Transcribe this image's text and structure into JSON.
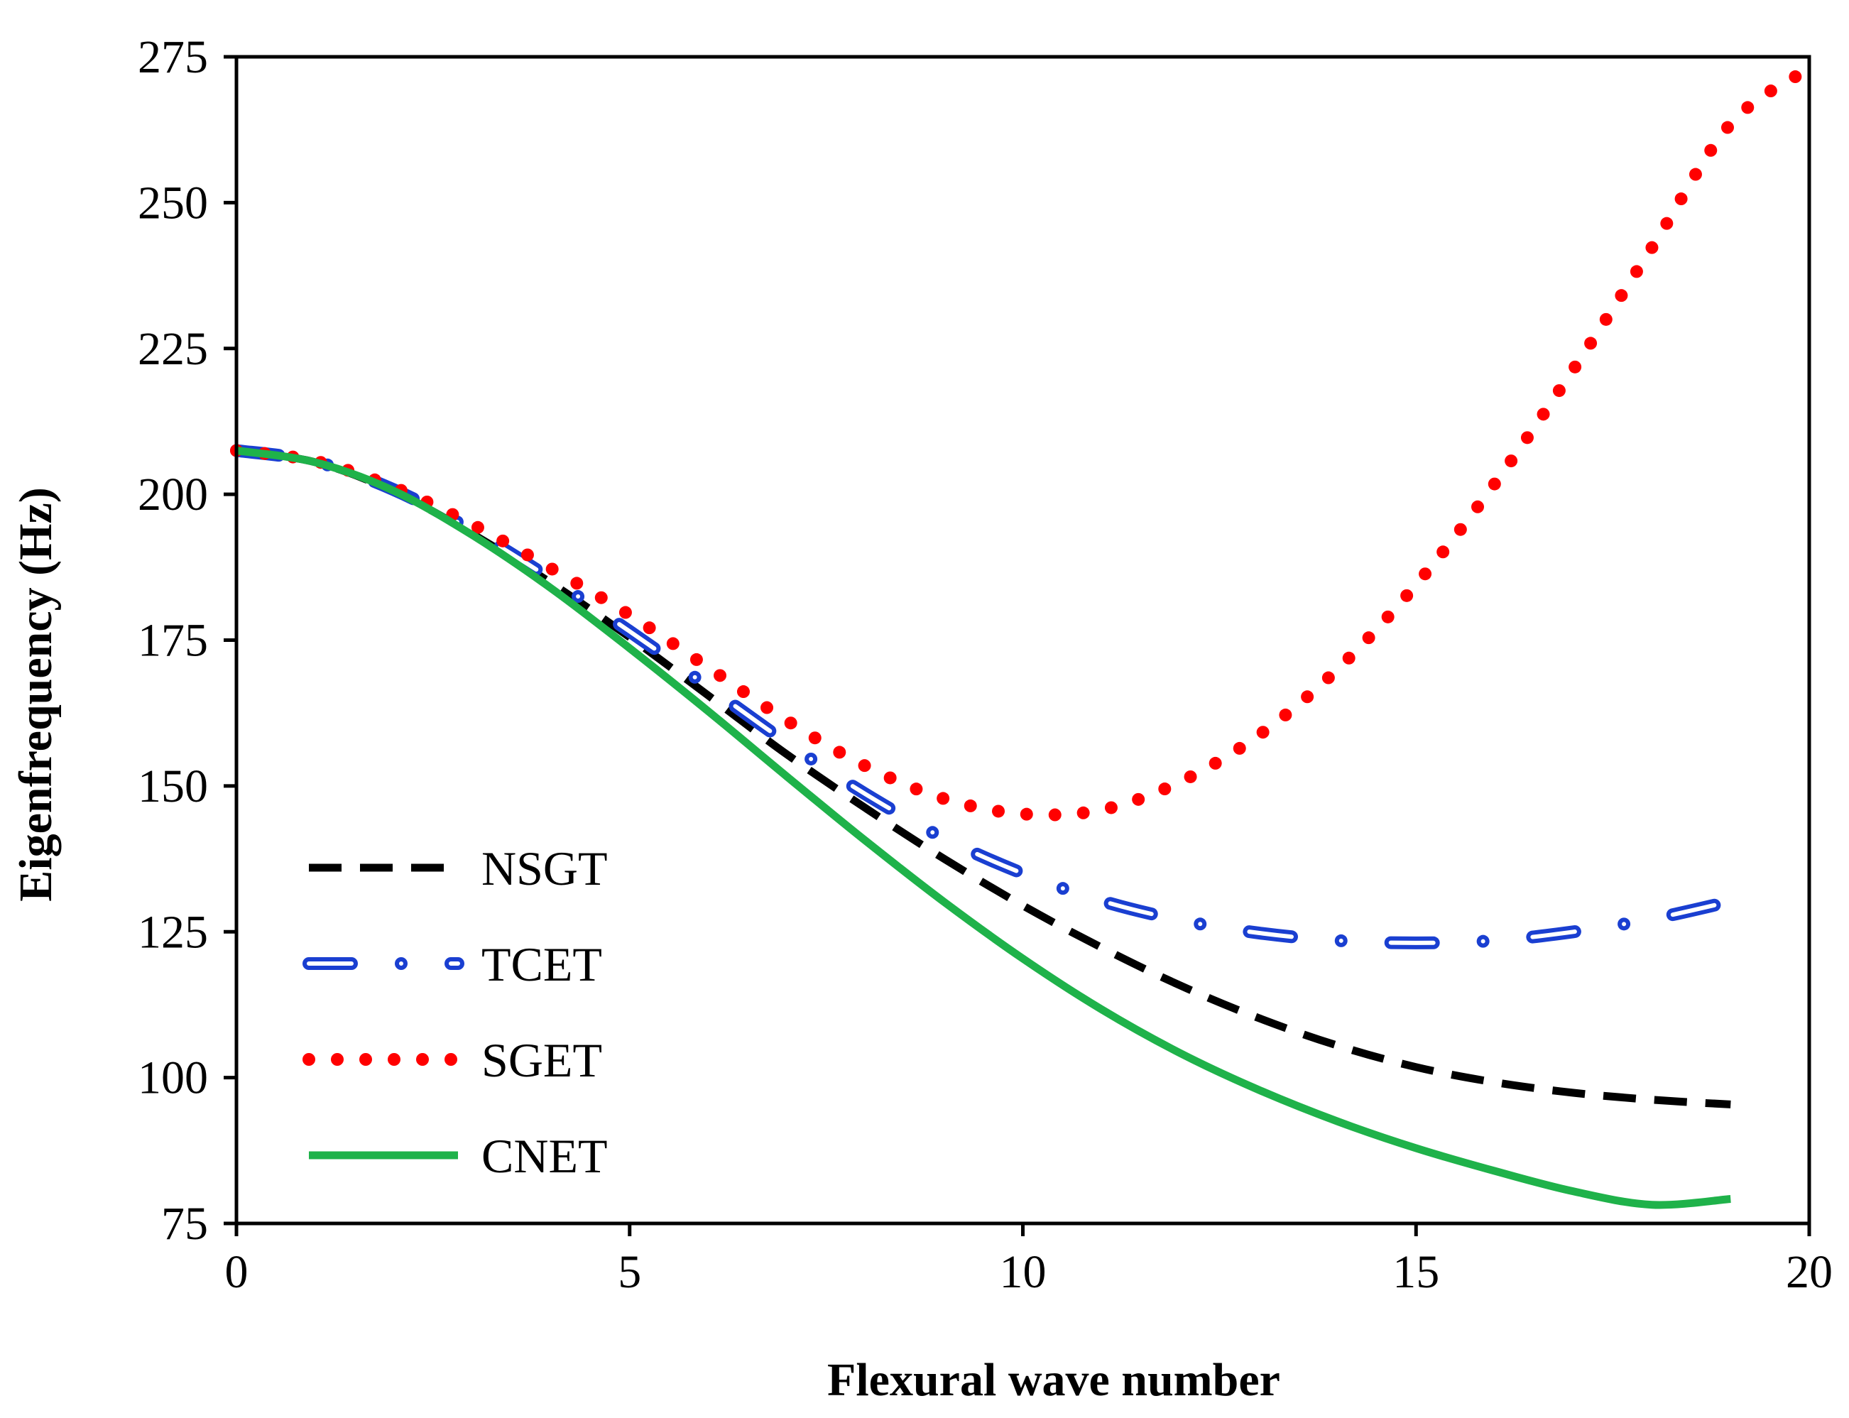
{
  "chart_data": {
    "type": "line",
    "title": "",
    "xlabel": "Flexural wave number",
    "ylabel": "Eigenfrequency (Hz)",
    "xlim": [
      0,
      20
    ],
    "ylim": [
      75,
      275
    ],
    "xticks": [
      0,
      5,
      10,
      15,
      20
    ],
    "yticks": [
      75,
      100,
      125,
      150,
      175,
      200,
      225,
      250,
      275
    ],
    "grid": false,
    "legend_position": "bottom-left",
    "x": [
      0,
      1,
      2,
      3,
      4,
      5,
      6,
      7,
      8,
      9,
      10,
      11,
      12,
      13,
      14,
      15,
      16,
      17,
      18,
      19,
      20
    ],
    "series": [
      {
        "name": "NSGT",
        "color": "#000000",
        "style": "dashed",
        "values": [
          207.5,
          205.5,
          200.5,
          193.2,
          184.8,
          175.5,
          165.5,
          155.4,
          146.2,
          137.5,
          129.5,
          122.3,
          115.8,
          110.2,
          105.5,
          101.8,
          99.2,
          97.4,
          96.2,
          95.4,
          null
        ]
      },
      {
        "name": "TCET",
        "color": "#1a3fd1",
        "style": "dash-dot",
        "values": [
          207.5,
          205.6,
          200.8,
          193.8,
          185.5,
          176.5,
          167.0,
          157.4,
          148.6,
          141.0,
          135.0,
          130.3,
          127.0,
          124.8,
          123.5,
          123.1,
          123.5,
          125.0,
          127.2,
          130.2,
          null
        ]
      },
      {
        "name": "SGET",
        "color": "#ff0000",
        "style": "dotted",
        "values": [
          207.5,
          205.7,
          201.2,
          194.8,
          187.3,
          179.3,
          170.3,
          161.2,
          153.4,
          147.8,
          145.2,
          145.9,
          150.7,
          158.7,
          170.0,
          184.5,
          201.8,
          221.4,
          242.3,
          263.5,
          273.0
        ]
      },
      {
        "name": "CNET",
        "color": "#1fb24a",
        "style": "solid",
        "values": [
          207.5,
          205.5,
          200.6,
          193.0,
          183.9,
          173.6,
          162.8,
          151.6,
          140.6,
          130.1,
          120.4,
          111.7,
          104.2,
          97.9,
          92.5,
          87.9,
          84.0,
          80.5,
          78.2,
          79.2,
          null
        ]
      }
    ]
  }
}
